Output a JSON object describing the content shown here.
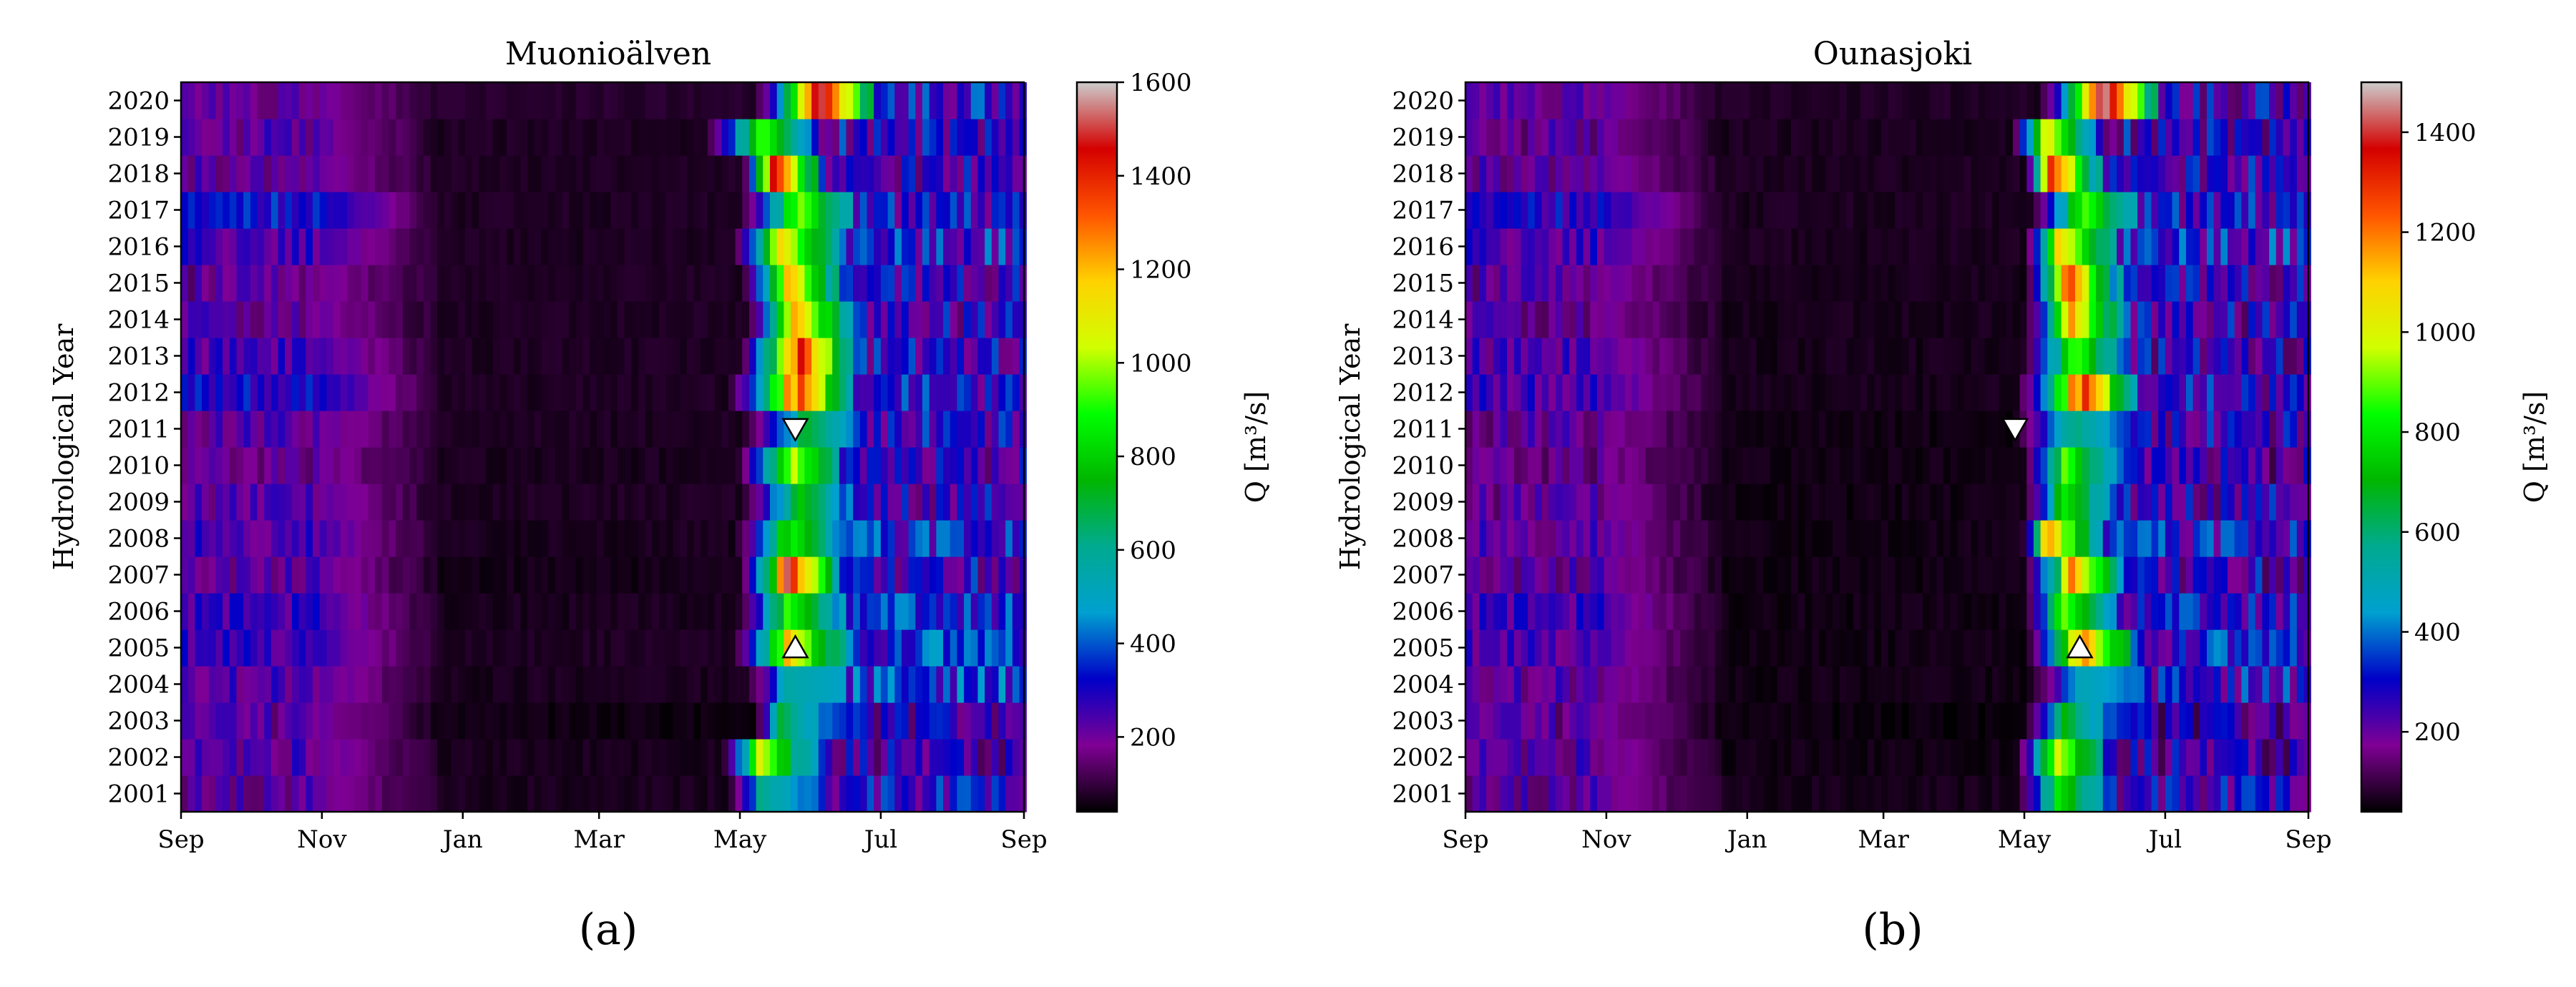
{
  "figure": {
    "colors": {
      "colormap": "nipy_spectral",
      "stops": [
        "#000000",
        "#7f0094",
        "#0000c8",
        "#00a0d0",
        "#00aa8f",
        "#00b600",
        "#00ff00",
        "#d0ff00",
        "#ffd200",
        "#ff5500",
        "#d40000",
        "#cccccc"
      ],
      "marker_fill": "#ffffff",
      "marker_stroke": "#000000"
    },
    "panels": [
      {
        "caption": "(a)",
        "title": "Muonioälven",
        "ylabel": "Hydrological Year",
        "colorbar": {
          "label": "Q [m³/s]",
          "range": [
            40,
            1600
          ],
          "ticks": [
            "200",
            "400",
            "600",
            "800",
            "1000",
            "1200",
            "1400",
            "1600"
          ],
          "tick_values": [
            200,
            400,
            600,
            800,
            1000,
            1200,
            1400,
            1600
          ]
        },
        "markers": [
          {
            "year": 2011,
            "day": 266,
            "direction": "down"
          },
          {
            "year": 2005,
            "day": 266,
            "direction": "up"
          }
        ]
      },
      {
        "caption": "(b)",
        "title": "Ounasjoki",
        "ylabel": "Hydrological Year",
        "colorbar": {
          "label": "Q [m³/s]",
          "range": [
            40,
            1500
          ],
          "ticks": [
            "200",
            "400",
            "600",
            "800",
            "1000",
            "1200",
            "1400"
          ],
          "tick_values": [
            200,
            400,
            600,
            800,
            1000,
            1200,
            1400
          ]
        },
        "markers": [
          {
            "year": 2011,
            "day": 238,
            "direction": "down"
          },
          {
            "year": 2005,
            "day": 266,
            "direction": "up"
          }
        ]
      }
    ]
  },
  "chart_data": [
    {
      "type": "heatmap",
      "title": "Muonioälven",
      "xlabel": "",
      "ylabel": "Hydrological Year",
      "x_ticks": [
        "Sep",
        "Nov",
        "Jan",
        "Mar",
        "May",
        "Jul",
        "Sep"
      ],
      "x_tick_days": [
        0,
        61,
        122,
        181,
        242,
        303,
        365
      ],
      "y_categories": [
        "2001",
        "2002",
        "2003",
        "2004",
        "2005",
        "2006",
        "2007",
        "2008",
        "2009",
        "2010",
        "2011",
        "2012",
        "2013",
        "2014",
        "2015",
        "2016",
        "2017",
        "2018",
        "2019",
        "2020"
      ],
      "colorbar_label": "Q [m³/s]",
      "value_range": [
        40,
        1600
      ],
      "flood_onset_day": [
        238,
        236,
        250,
        245,
        240,
        242,
        243,
        241,
        244,
        242,
        244,
        238,
        243,
        246,
        244,
        240,
        243,
        245,
        228,
        250
      ],
      "peak_day": [
        250,
        250,
        258,
        262,
        262,
        262,
        262,
        262,
        266,
        262,
        270,
        266,
        266,
        266,
        263,
        258,
        266,
        255,
        250,
        276
      ],
      "peak_q": [
        600,
        1050,
        700,
        560,
        1150,
        900,
        1450,
        900,
        800,
        1100,
        700,
        1400,
        1500,
        1200,
        1200,
        1150,
        1000,
        1450,
        950,
        1500
      ],
      "winter_q": [
        55,
        55,
        45,
        55,
        60,
        55,
        50,
        55,
        60,
        55,
        60,
        60,
        60,
        60,
        60,
        60,
        60,
        60,
        60,
        70
      ],
      "autumn_q": [
        180,
        200,
        180,
        200,
        240,
        230,
        190,
        220,
        190,
        170,
        190,
        280,
        220,
        180,
        170,
        230,
        300,
        180,
        190,
        170
      ],
      "summer_q": [
        260,
        220,
        240,
        340,
        340,
        300,
        250,
        300,
        240,
        240,
        260,
        280,
        260,
        240,
        250,
        300,
        280,
        220,
        260,
        280
      ]
    },
    {
      "type": "heatmap",
      "title": "Ounasjoki",
      "xlabel": "",
      "ylabel": "Hydrological Year",
      "x_ticks": [
        "Sep",
        "Nov",
        "Jan",
        "Mar",
        "May",
        "Jul",
        "Sep"
      ],
      "x_tick_days": [
        0,
        61,
        122,
        181,
        242,
        303,
        365
      ],
      "y_categories": [
        "2001",
        "2002",
        "2003",
        "2004",
        "2005",
        "2006",
        "2007",
        "2008",
        "2009",
        "2010",
        "2011",
        "2012",
        "2013",
        "2014",
        "2015",
        "2016",
        "2017",
        "2018",
        "2019",
        "2020"
      ],
      "colorbar_label": "Q [m³/s]",
      "value_range": [
        40,
        1500
      ],
      "flood_onset_day": [
        240,
        240,
        243,
        244,
        244,
        243,
        243,
        243,
        243,
        243,
        238,
        240,
        242,
        243,
        244,
        244,
        246,
        244,
        238,
        250
      ],
      "peak_day": [
        255,
        255,
        258,
        266,
        266,
        258,
        262,
        250,
        258,
        258,
        262,
        266,
        262,
        262,
        260,
        255,
        266,
        252,
        250,
        276
      ],
      "peak_q": [
        800,
        1000,
        700,
        500,
        1200,
        900,
        1150,
        1200,
        800,
        900,
        600,
        1350,
        900,
        1100,
        1300,
        1100,
        900,
        1300,
        1050,
        1450
      ],
      "winter_q": [
        50,
        45,
        40,
        45,
        45,
        45,
        45,
        45,
        45,
        45,
        45,
        50,
        50,
        50,
        50,
        55,
        55,
        55,
        55,
        60
      ],
      "autumn_q": [
        170,
        180,
        160,
        170,
        200,
        210,
        170,
        180,
        160,
        150,
        160,
        210,
        190,
        160,
        170,
        210,
        250,
        170,
        160,
        170
      ],
      "summer_q": [
        220,
        200,
        200,
        260,
        280,
        240,
        220,
        260,
        220,
        200,
        220,
        240,
        220,
        220,
        230,
        280,
        260,
        220,
        230,
        220
      ]
    }
  ]
}
